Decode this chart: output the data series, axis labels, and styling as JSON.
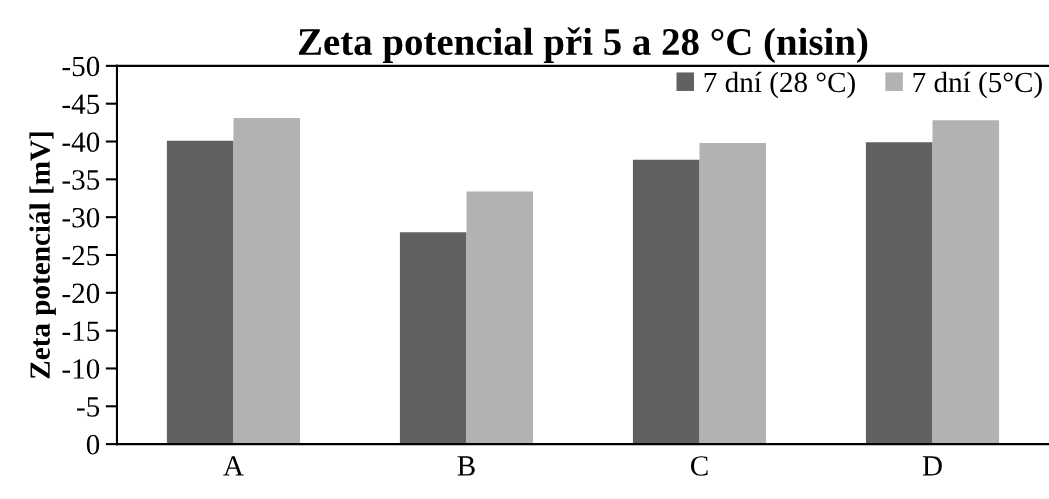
{
  "chart_data": {
    "type": "bar",
    "title": "Zeta potencial při 5 a 28 °C (nisin)",
    "ylabel": "Zeta potenciál [mV]",
    "categories": [
      "A",
      "B",
      "C",
      "D"
    ],
    "series": [
      {
        "name": "7 dní (28 °C)",
        "color": "#616161",
        "values": [
          -40.1,
          -28.0,
          -37.6,
          -39.9
        ]
      },
      {
        "name": "7 dní (5°C)",
        "color": "#b2b2b2",
        "values": [
          -43.1,
          -33.4,
          -39.8,
          -42.8
        ]
      }
    ],
    "ylim": [
      0,
      -50
    ],
    "yticks": [
      -50,
      -45,
      -40,
      -35,
      -30,
      -25,
      -20,
      -15,
      -10,
      -5,
      0
    ],
    "grid": false,
    "legend": "top right"
  }
}
